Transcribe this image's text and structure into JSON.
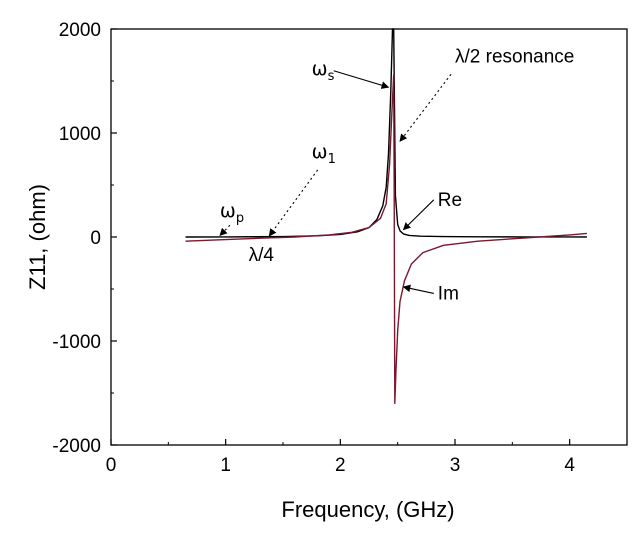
{
  "chart_data": {
    "type": "line",
    "title": "",
    "xlabel": "Frequency, (GHz)",
    "ylabel": "Z11, (ohm)",
    "xlim": [
      0,
      4.5
    ],
    "ylim": [
      -2000,
      2000
    ],
    "x_ticks": [
      0,
      1,
      2,
      3,
      4
    ],
    "x_tick_labels": [
      "0",
      "1",
      "2",
      "3",
      "4"
    ],
    "y_ticks": [
      -2000,
      -1000,
      0,
      1000,
      2000
    ],
    "y_tick_labels": [
      "-2000",
      "-1000",
      "0",
      "1000",
      "2000"
    ],
    "grid": false,
    "series": [
      {
        "name": "Re",
        "color": "#000000",
        "x": [
          0.65,
          1.0,
          1.5,
          1.8,
          2.0,
          2.15,
          2.25,
          2.32,
          2.37,
          2.4,
          2.42,
          2.44,
          2.455,
          2.465,
          2.48,
          2.5,
          2.52,
          2.55,
          2.6,
          2.7,
          2.9,
          3.2,
          3.6,
          4.0,
          4.15
        ],
        "values": [
          0,
          1,
          4,
          12,
          25,
          50,
          90,
          170,
          300,
          480,
          800,
          1400,
          2000,
          2000,
          400,
          120,
          60,
          30,
          15,
          8,
          4,
          2,
          1,
          0.5,
          0.3
        ]
      },
      {
        "name": "Im",
        "color": "#7a1830",
        "x": [
          0.65,
          1.0,
          1.3,
          1.6,
          1.9,
          2.1,
          2.25,
          2.35,
          2.4,
          2.43,
          2.45,
          2.465,
          2.47,
          2.475,
          2.485,
          2.5,
          2.52,
          2.56,
          2.62,
          2.72,
          2.9,
          3.2,
          3.6,
          4.0,
          4.15
        ],
        "values": [
          -40,
          -25,
          -12,
          0,
          20,
          45,
          90,
          180,
          320,
          700,
          1200,
          1560,
          400,
          -1600,
          -1300,
          -900,
          -620,
          -420,
          -260,
          -150,
          -80,
          -40,
          -10,
          20,
          35
        ]
      }
    ],
    "annotations": [
      {
        "label": "ω",
        "sub": "p",
        "at": [
          0.95,
          190
        ],
        "arrow_to": [
          0.95,
          15
        ],
        "style": "dotted"
      },
      {
        "label": "ω",
        "sub": "1",
        "at": [
          1.75,
          760
        ],
        "arrow_to": [
          1.38,
          10
        ],
        "style": "dotted"
      },
      {
        "label": "ω",
        "sub": "s",
        "at": [
          1.75,
          1560
        ],
        "arrow_to": [
          2.42,
          1440
        ],
        "style": "solid"
      },
      {
        "label": "λ/2 resonance",
        "at": [
          3.0,
          1680
        ],
        "arrow_to": [
          2.52,
          920
        ],
        "style": "dotted"
      },
      {
        "label": "Re",
        "at": [
          2.85,
          300
        ],
        "arrow_to": [
          2.55,
          70
        ],
        "style": "solid"
      },
      {
        "label": "Im",
        "at": [
          2.85,
          -600
        ],
        "arrow_to": [
          2.55,
          -480
        ],
        "style": "solid"
      },
      {
        "label": "λ/4",
        "at": [
          1.2,
          -230
        ]
      }
    ]
  }
}
